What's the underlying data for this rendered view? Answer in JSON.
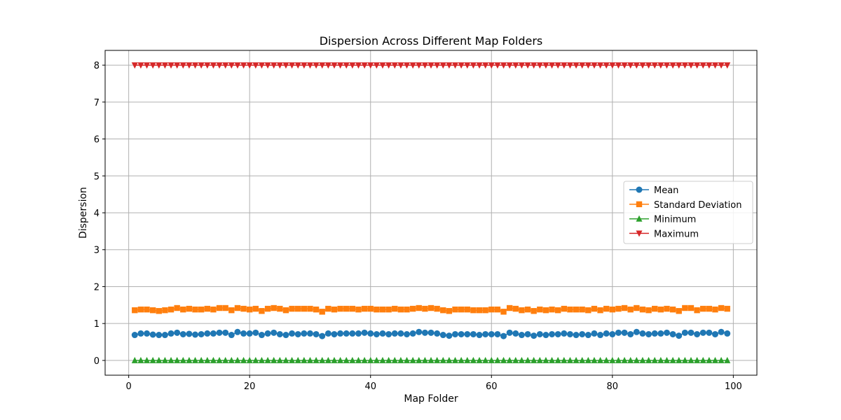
{
  "chart_data": {
    "type": "line",
    "title": "Dispersion Across Different Map Folders",
    "xlabel": "Map Folder",
    "ylabel": "Dispersion",
    "xlim": [
      -3.9,
      103.9
    ],
    "ylim": [
      -0.4,
      8.4
    ],
    "xticks": [
      0,
      20,
      40,
      60,
      80,
      100
    ],
    "yticks": [
      0,
      1,
      2,
      3,
      4,
      5,
      6,
      7,
      8
    ],
    "grid": true,
    "legend_position": "center-right",
    "x": [
      1,
      2,
      3,
      4,
      5,
      6,
      7,
      8,
      9,
      10,
      11,
      12,
      13,
      14,
      15,
      16,
      17,
      18,
      19,
      20,
      21,
      22,
      23,
      24,
      25,
      26,
      27,
      28,
      29,
      30,
      31,
      32,
      33,
      34,
      35,
      36,
      37,
      38,
      39,
      40,
      41,
      42,
      43,
      44,
      45,
      46,
      47,
      48,
      49,
      50,
      51,
      52,
      53,
      54,
      55,
      56,
      57,
      58,
      59,
      60,
      61,
      62,
      63,
      64,
      65,
      66,
      67,
      68,
      69,
      70,
      71,
      72,
      73,
      74,
      75,
      76,
      77,
      78,
      79,
      80,
      81,
      82,
      83,
      84,
      85,
      86,
      87,
      88,
      89,
      90,
      91,
      92,
      93,
      94,
      95,
      96,
      97,
      98,
      99
    ],
    "series": [
      {
        "name": "Mean",
        "color": "#1f77b4",
        "marker": "circle",
        "values": [
          0.69,
          0.73,
          0.73,
          0.7,
          0.69,
          0.69,
          0.73,
          0.75,
          0.71,
          0.72,
          0.7,
          0.71,
          0.73,
          0.73,
          0.75,
          0.75,
          0.69,
          0.77,
          0.73,
          0.73,
          0.75,
          0.69,
          0.73,
          0.75,
          0.71,
          0.69,
          0.73,
          0.71,
          0.73,
          0.73,
          0.71,
          0.66,
          0.73,
          0.71,
          0.73,
          0.73,
          0.73,
          0.73,
          0.75,
          0.73,
          0.71,
          0.73,
          0.71,
          0.73,
          0.73,
          0.71,
          0.73,
          0.77,
          0.75,
          0.75,
          0.73,
          0.69,
          0.67,
          0.71,
          0.71,
          0.71,
          0.71,
          0.69,
          0.71,
          0.71,
          0.71,
          0.66,
          0.75,
          0.73,
          0.69,
          0.71,
          0.67,
          0.71,
          0.69,
          0.71,
          0.71,
          0.73,
          0.71,
          0.69,
          0.71,
          0.69,
          0.73,
          0.69,
          0.73,
          0.71,
          0.75,
          0.75,
          0.71,
          0.77,
          0.73,
          0.71,
          0.73,
          0.73,
          0.75,
          0.71,
          0.67,
          0.75,
          0.75,
          0.71,
          0.75,
          0.75,
          0.71,
          0.77,
          0.73
        ]
      },
      {
        "name": "Standard Deviation",
        "color": "#ff7f0e",
        "marker": "square",
        "values": [
          1.36,
          1.38,
          1.38,
          1.36,
          1.34,
          1.36,
          1.38,
          1.42,
          1.38,
          1.4,
          1.38,
          1.38,
          1.4,
          1.38,
          1.42,
          1.42,
          1.36,
          1.42,
          1.4,
          1.38,
          1.4,
          1.34,
          1.4,
          1.42,
          1.4,
          1.36,
          1.4,
          1.4,
          1.4,
          1.4,
          1.38,
          1.32,
          1.4,
          1.38,
          1.4,
          1.4,
          1.4,
          1.38,
          1.4,
          1.4,
          1.38,
          1.38,
          1.38,
          1.4,
          1.38,
          1.38,
          1.4,
          1.42,
          1.4,
          1.42,
          1.4,
          1.36,
          1.34,
          1.38,
          1.38,
          1.38,
          1.36,
          1.36,
          1.36,
          1.38,
          1.38,
          1.32,
          1.42,
          1.4,
          1.36,
          1.38,
          1.34,
          1.38,
          1.36,
          1.38,
          1.36,
          1.4,
          1.38,
          1.38,
          1.38,
          1.36,
          1.4,
          1.36,
          1.4,
          1.38,
          1.4,
          1.42,
          1.38,
          1.42,
          1.38,
          1.36,
          1.4,
          1.38,
          1.4,
          1.38,
          1.34,
          1.42,
          1.42,
          1.36,
          1.4,
          1.4,
          1.38,
          1.42,
          1.4
        ]
      },
      {
        "name": "Minimum",
        "color": "#2ca02c",
        "marker": "triangle-up",
        "values": [
          0,
          0,
          0,
          0,
          0,
          0,
          0,
          0,
          0,
          0,
          0,
          0,
          0,
          0,
          0,
          0,
          0,
          0,
          0,
          0,
          0,
          0,
          0,
          0,
          0,
          0,
          0,
          0,
          0,
          0,
          0,
          0,
          0,
          0,
          0,
          0,
          0,
          0,
          0,
          0,
          0,
          0,
          0,
          0,
          0,
          0,
          0,
          0,
          0,
          0,
          0,
          0,
          0,
          0,
          0,
          0,
          0,
          0,
          0,
          0,
          0,
          0,
          0,
          0,
          0,
          0,
          0,
          0,
          0,
          0,
          0,
          0,
          0,
          0,
          0,
          0,
          0,
          0,
          0,
          0,
          0,
          0,
          0,
          0,
          0,
          0,
          0,
          0,
          0,
          0,
          0,
          0,
          0,
          0,
          0,
          0,
          0,
          0,
          0
        ]
      },
      {
        "name": "Maximum",
        "color": "#d62728",
        "marker": "triangle-down",
        "values": [
          8,
          8,
          8,
          8,
          8,
          8,
          8,
          8,
          8,
          8,
          8,
          8,
          8,
          8,
          8,
          8,
          8,
          8,
          8,
          8,
          8,
          8,
          8,
          8,
          8,
          8,
          8,
          8,
          8,
          8,
          8,
          8,
          8,
          8,
          8,
          8,
          8,
          8,
          8,
          8,
          8,
          8,
          8,
          8,
          8,
          8,
          8,
          8,
          8,
          8,
          8,
          8,
          8,
          8,
          8,
          8,
          8,
          8,
          8,
          8,
          8,
          8,
          8,
          8,
          8,
          8,
          8,
          8,
          8,
          8,
          8,
          8,
          8,
          8,
          8,
          8,
          8,
          8,
          8,
          8,
          8,
          8,
          8,
          8,
          8,
          8,
          8,
          8,
          8,
          8,
          8,
          8,
          8,
          8,
          8,
          8,
          8,
          8,
          8
        ]
      }
    ]
  }
}
